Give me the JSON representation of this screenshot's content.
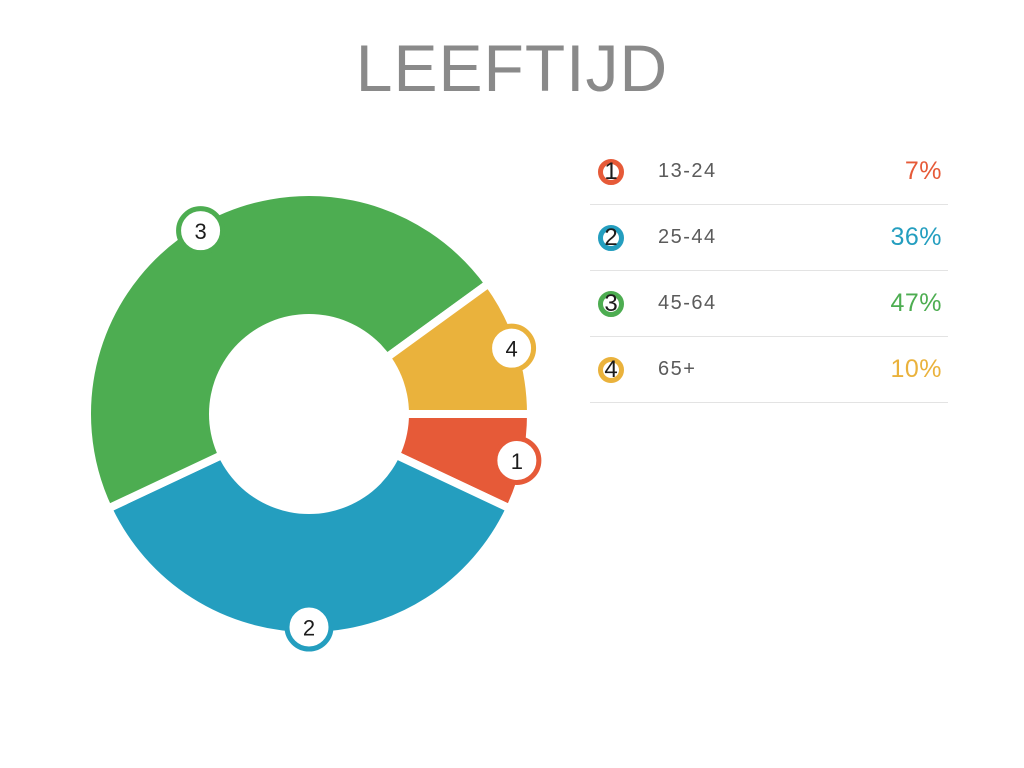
{
  "chart_data": {
    "type": "pie",
    "subtype": "donut",
    "title": "LEEFTIJD",
    "unit": "%",
    "start_angle_deg": 0,
    "direction": "clockwise",
    "legend_position": "right",
    "grid": false,
    "colors": {
      "title_text": "#8a8a8a",
      "label_text": "#5b5b5b",
      "badge_number_text": "#1c1c1c",
      "divider": "#e3e3e3",
      "background": "#ffffff"
    },
    "segments": [
      {
        "id": "1",
        "label": "13-24",
        "value": 7,
        "pct": "7%",
        "color": "#e65a38"
      },
      {
        "id": "2",
        "label": "25-44",
        "value": 36,
        "pct": "36%",
        "color": "#249ebf"
      },
      {
        "id": "3",
        "label": "45-64",
        "value": 47,
        "pct": "47%",
        "color": "#4dad51"
      },
      {
        "id": "4",
        "label": "65+",
        "value": 10,
        "pct": "10%",
        "color": "#eab23c"
      }
    ]
  }
}
